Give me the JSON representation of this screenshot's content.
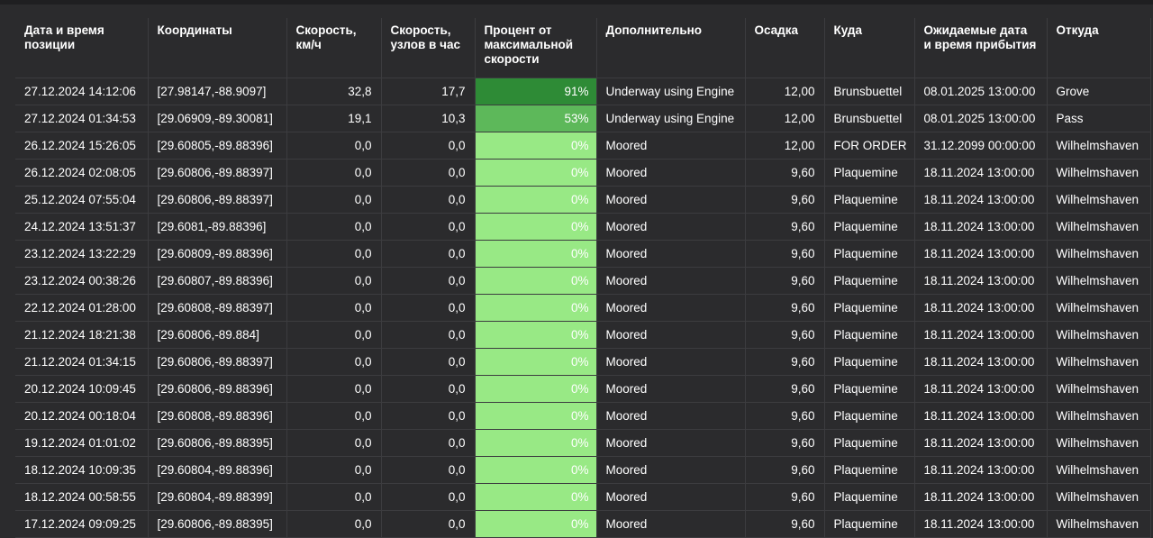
{
  "columns": [
    "Дата и время позиции",
    "Координаты",
    "Скорость, км/ч",
    "Скорость, узлов в час",
    "Процент от максимальной скорости",
    "Дополнительно",
    "Осадка",
    "Куда",
    "Ожидаемые дата и время прибытия",
    "Откуда"
  ],
  "rows": [
    [
      "27.12.2024 14:12:06",
      "[27.98147,-88.9097]",
      "32,8",
      "17,7",
      "91%",
      "Underway using Engine",
      "12,00",
      "Brunsbuettel",
      "08.01.2025 13:00:00",
      "Grove"
    ],
    [
      "27.12.2024 01:34:53",
      "[29.06909,-89.30081]",
      "19,1",
      "10,3",
      "53%",
      "Underway using Engine",
      "12,00",
      "Brunsbuettel",
      "08.01.2025 13:00:00",
      "Pass"
    ],
    [
      "26.12.2024 15:26:05",
      "[29.60805,-89.88396]",
      "0,0",
      "0,0",
      "0%",
      "Moored",
      "12,00",
      "FOR ORDER",
      "31.12.2099 00:00:00",
      "Wilhelmshaven"
    ],
    [
      "26.12.2024 02:08:05",
      "[29.60806,-89.88397]",
      "0,0",
      "0,0",
      "0%",
      "Moored",
      "9,60",
      "Plaquemine",
      "18.11.2024 13:00:00",
      "Wilhelmshaven"
    ],
    [
      "25.12.2024 07:55:04",
      "[29.60806,-89.88397]",
      "0,0",
      "0,0",
      "0%",
      "Moored",
      "9,60",
      "Plaquemine",
      "18.11.2024 13:00:00",
      "Wilhelmshaven"
    ],
    [
      "24.12.2024 13:51:37",
      "[29.6081,-89.88396]",
      "0,0",
      "0,0",
      "0%",
      "Moored",
      "9,60",
      "Plaquemine",
      "18.11.2024 13:00:00",
      "Wilhelmshaven"
    ],
    [
      "23.12.2024 13:22:29",
      "[29.60809,-89.88396]",
      "0,0",
      "0,0",
      "0%",
      "Moored",
      "9,60",
      "Plaquemine",
      "18.11.2024 13:00:00",
      "Wilhelmshaven"
    ],
    [
      "23.12.2024 00:38:26",
      "[29.60807,-89.88396]",
      "0,0",
      "0,0",
      "0%",
      "Moored",
      "9,60",
      "Plaquemine",
      "18.11.2024 13:00:00",
      "Wilhelmshaven"
    ],
    [
      "22.12.2024 01:28:00",
      "[29.60808,-89.88397]",
      "0,0",
      "0,0",
      "0%",
      "Moored",
      "9,60",
      "Plaquemine",
      "18.11.2024 13:00:00",
      "Wilhelmshaven"
    ],
    [
      "21.12.2024 18:21:38",
      "[29.60806,-89.884]",
      "0,0",
      "0,0",
      "0%",
      "Moored",
      "9,60",
      "Plaquemine",
      "18.11.2024 13:00:00",
      "Wilhelmshaven"
    ],
    [
      "21.12.2024 01:34:15",
      "[29.60806,-89.88397]",
      "0,0",
      "0,0",
      "0%",
      "Moored",
      "9,60",
      "Plaquemine",
      "18.11.2024 13:00:00",
      "Wilhelmshaven"
    ],
    [
      "20.12.2024 10:09:45",
      "[29.60806,-89.88396]",
      "0,0",
      "0,0",
      "0%",
      "Moored",
      "9,60",
      "Plaquemine",
      "18.11.2024 13:00:00",
      "Wilhelmshaven"
    ],
    [
      "20.12.2024 00:18:04",
      "[29.60808,-89.88396]",
      "0,0",
      "0,0",
      "0%",
      "Moored",
      "9,60",
      "Plaquemine",
      "18.11.2024 13:00:00",
      "Wilhelmshaven"
    ],
    [
      "19.12.2024 01:01:02",
      "[29.60806,-89.88395]",
      "0,0",
      "0,0",
      "0%",
      "Moored",
      "9,60",
      "Plaquemine",
      "18.11.2024 13:00:00",
      "Wilhelmshaven"
    ],
    [
      "18.12.2024 10:09:35",
      "[29.60804,-89.88396]",
      "0,0",
      "0,0",
      "0%",
      "Moored",
      "9,60",
      "Plaquemine",
      "18.11.2024 13:00:00",
      "Wilhelmshaven"
    ],
    [
      "18.12.2024 00:58:55",
      "[29.60804,-89.88399]",
      "0,0",
      "0,0",
      "0%",
      "Moored",
      "9,60",
      "Plaquemine",
      "18.11.2024 13:00:00",
      "Wilhelmshaven"
    ],
    [
      "17.12.2024 09:09:25",
      "[29.60806,-89.88395]",
      "0,0",
      "0,0",
      "0%",
      "Moored",
      "9,60",
      "Plaquemine",
      "18.11.2024 13:00:00",
      "Wilhelmshaven"
    ]
  ],
  "colors": {
    "background": "#2b2b2d",
    "pct_low": "#98e985",
    "pct_mid": "#5db85a",
    "pct_high": "#2e8b36"
  }
}
